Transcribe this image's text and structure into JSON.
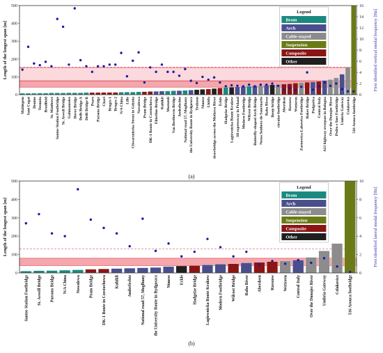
{
  "colors": {
    "Beam": "#1a8a80",
    "Arch": "#4a4f8c",
    "Cable-stayed": "#8c8c8c",
    "Suspension": "#6b7a16",
    "Composite": "#8b1515",
    "Other": "#1f1f1f",
    "freq_point": "#1a1aa8",
    "band_fill": "#f4a7ad",
    "band_fill_light": "#fbd9dc",
    "band_line": "#e05560"
  },
  "chart_data": [
    {
      "type": "bar",
      "panel_label": "(a)",
      "ylabel": "Length of the longest span [m]",
      "y2label": "First identified vertical modal frequency [Hz]",
      "ylim": [
        0,
        500
      ],
      "yticks": [
        0,
        100,
        200,
        300,
        400,
        500
      ],
      "y2lim": [
        0,
        16
      ],
      "y2ticks": [
        0,
        2,
        4,
        6,
        8,
        10,
        12,
        14,
        16
      ],
      "legend": {
        "title": "Legend",
        "entries": [
          "Beam",
          "Arch",
          "Cable-stayed",
          "Suspension",
          "Composite",
          "Other"
        ]
      },
      "bands": [
        {
          "from": 42,
          "to": 76,
          "style": "dark"
        },
        {
          "from": 78,
          "to": 152,
          "style": "light"
        }
      ],
      "reference_lines": [
        155
      ],
      "categories": [
        "Maldegem",
        "Sant Cugat",
        "Deutne",
        "Tremola",
        "Bradfield",
        "St. Matthews",
        "Santos Station Footbridge",
        "St. Aswell Bridge",
        "Gahmanseies",
        "Dover Bridge",
        "Delft Bridge A",
        "Delft Bridge B",
        "Pears",
        "Parsons Bridge",
        "Chari",
        "Bruges 1",
        "Bruges 2",
        "N/A China",
        "Lille",
        "Chwarzniecka Street in Gdynia",
        "Nowolewa",
        "Pram Bridge",
        "DK-1 Route in Czestochowa",
        "Filterline Bridge",
        "Kuhikli",
        "Mostotsli",
        "Van Beethoven Bridge",
        "Anderfechte",
        "National road 57, Moglhany",
        "the University Route in Bydgoszcz",
        "Trabzon",
        "Nimese",
        "Lloida",
        "drawbridge across the Motlawa River",
        "Eckle",
        "Hadgeize Bridge",
        "Lagiewnicka Route Krakow",
        "S8 expressway in Poland",
        "Modern Footbridge",
        "Wilcost Bridge",
        "Butterfly-shaped Arch Bridge",
        "Nossa Senhora do Sanctuario",
        "Raba River",
        "Ikeep bridge",
        "circular footbridge",
        "Aberdeen",
        "Rzeszow",
        "Wetteren",
        "Zarnowica-Lakowica Footbridge",
        "Baker Bridge",
        "Podgorica",
        "Central Italy",
        "A13 highway overpass in Bologna",
        "Over the Dunajec River",
        "Pedro e Ines Footbridge",
        "Umbria Gateway",
        "Celakovice",
        "516 Arouca footbridge"
      ],
      "values": [
        8,
        8,
        8,
        9,
        9,
        10,
        10,
        10,
        11,
        11,
        11,
        12,
        12,
        12,
        13,
        13,
        13,
        14,
        15,
        15,
        16,
        17,
        18,
        19,
        20,
        21,
        22,
        23,
        24,
        26,
        28,
        30,
        32,
        35,
        38,
        40,
        42,
        44,
        46,
        48,
        50,
        52,
        54,
        56,
        58,
        60,
        62,
        65,
        68,
        70,
        72,
        75,
        80,
        85,
        95,
        115,
        155,
        516
      ],
      "types": [
        "Beam",
        "Beam",
        "Beam",
        "Beam",
        "Beam",
        "Beam",
        "Beam",
        "Beam",
        "Beam",
        "Beam",
        "Beam",
        "Beam",
        "Composite",
        "Composite",
        "Composite",
        "Composite",
        "Composite",
        "Beam",
        "Beam",
        "Beam",
        "Beam",
        "Composite",
        "Composite",
        "Arch",
        "Arch",
        "Beam",
        "Beam",
        "Arch",
        "Beam",
        "Arch",
        "Other",
        "Other",
        "Composite",
        "Other",
        "Composite",
        "Beam",
        "Other",
        "Arch",
        "Arch",
        "Beam",
        "Arch",
        "Cable-stayed",
        "Arch",
        "Other",
        "Cable-stayed",
        "Composite",
        "Composite",
        "Composite",
        "Cable-stayed",
        "Composite",
        "Arch",
        "Composite",
        "Arch",
        "Cable-stayed",
        "Cable-stayed",
        "Arch",
        "Cable-stayed",
        "Suspension"
      ],
      "frequencies": [
        4.5,
        8.6,
        5.6,
        5.3,
        5.9,
        5.1,
        13.6,
        12.2,
        5.4,
        15.5,
        6.2,
        5.1,
        4.1,
        5.1,
        5.1,
        5.4,
        5.4,
        7.5,
        3.3,
        6.1,
        7.6,
        2.2,
        4.9,
        4.1,
        5.4,
        4.1,
        4.1,
        3.4,
        4.6,
        2.5,
        2.1,
        3.2,
        2.7,
        3.1,
        2.2,
        1.5,
        1.7,
        1.6,
        1.5,
        1.8,
        1.5,
        1.8,
        1.8,
        2.0,
        1.6,
        0.9,
        1.2,
        0.8,
        1.4,
        4.0,
        0.9,
        1.5,
        2.2,
        1.6,
        2.0,
        1.0,
        0.6,
        0.6
      ]
    },
    {
      "type": "bar",
      "panel_label": "(b)",
      "ylabel": "Length of the longest span [m]",
      "y2label": "First identified lateral modal frequency [Hz]",
      "ylim": [
        0,
        500
      ],
      "yticks": [
        0,
        100,
        200,
        300,
        400,
        500
      ],
      "y2lim": [
        0,
        10
      ],
      "y2ticks": [
        0,
        2,
        4,
        6,
        8,
        10
      ],
      "legend": {
        "title": "Legend",
        "entries": [
          "Beam",
          "Arch",
          "Cable-stayed",
          "Suspension",
          "Composite",
          "Other"
        ]
      },
      "bands": [
        {
          "from": 40,
          "to": 80,
          "style": "dark"
        }
      ],
      "reference_lines": [
        130
      ],
      "categories": [
        "Santos Station Footbridge",
        "St. Aswell Bridge",
        "Parsons Bridge",
        "N/A China",
        "Nowolewa",
        "Pram Bridge",
        "DK-1 Route in Czestochowa",
        "Kuhikli",
        "Anderfechte",
        "National road 57, Moglhany",
        "the University Route in Bydgoszcz",
        "Nimese",
        "Eckle",
        "Hadgeize Bridge",
        "Lagiewnicka Route Krakow",
        "Modern Footbridge",
        "Wilcost Bridge",
        "Raba River",
        "Aberdeen",
        "Rzeszow",
        "Wetteren",
        "Central Italy",
        "Over the Dunajec River",
        "Umbria Gateway",
        "Celakovice",
        "516 Arouca footbridge"
      ],
      "values": [
        10,
        12,
        13,
        15,
        17,
        20,
        22,
        24,
        26,
        28,
        30,
        35,
        38,
        40,
        44,
        48,
        50,
        55,
        58,
        62,
        66,
        70,
        85,
        120,
        160,
        516
      ],
      "types": [
        "Beam",
        "Beam",
        "Beam",
        "Beam",
        "Beam",
        "Composite",
        "Composite",
        "Arch",
        "Arch",
        "Arch",
        "Arch",
        "Arch",
        "Other",
        "Composite",
        "Arch",
        "Arch",
        "Composite",
        "Arch",
        "Composite",
        "Composite",
        "Cable-stayed",
        "Arch",
        "Cable-stayed",
        "Cable-stayed",
        "Cable-stayed",
        "Suspension"
      ],
      "frequencies": [
        5.4,
        6.4,
        4.3,
        4.0,
        9.1,
        5.8,
        4.9,
        4.3,
        2.9,
        5.9,
        2.4,
        3.2,
        1.8,
        2.3,
        3.7,
        2.8,
        1.8,
        2.3,
        0.9,
        1.3,
        1.0,
        1.4,
        1.1,
        1.6,
        0.7,
        0.1
      ]
    }
  ]
}
